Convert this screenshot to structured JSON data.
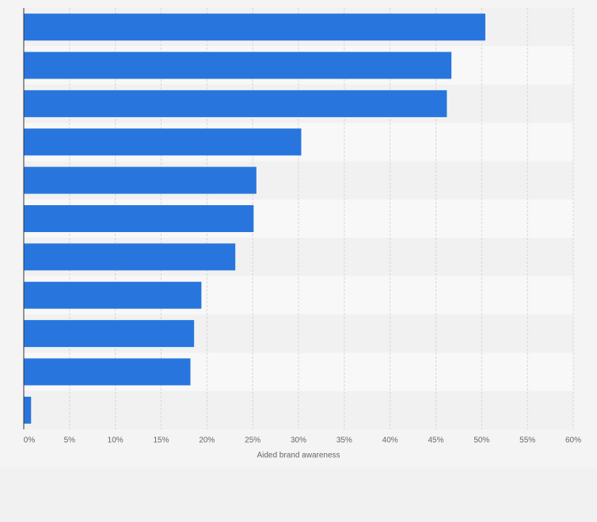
{
  "chart_data": {
    "type": "bar",
    "orientation": "horizontal",
    "x_label": "Aided brand awareness",
    "categories": [
      null,
      null,
      null,
      null,
      null,
      null,
      null,
      null,
      null,
      null,
      null
    ],
    "values": [
      50.4,
      46.7,
      46.2,
      30.3,
      25.4,
      25.1,
      23.1,
      19.4,
      18.6,
      18.2,
      0.8
    ],
    "color": "#2876dd",
    "xlim": [
      0,
      60
    ],
    "xticks": [
      {
        "value": 0,
        "label": "0%"
      },
      {
        "value": 5,
        "label": "5%"
      },
      {
        "value": 10,
        "label": "10%"
      },
      {
        "value": 15,
        "label": "15%"
      },
      {
        "value": 20,
        "label": "20%"
      },
      {
        "value": 25,
        "label": "25%"
      },
      {
        "value": 30,
        "label": "30%"
      },
      {
        "value": 35,
        "label": "35%"
      },
      {
        "value": 40,
        "label": "40%"
      },
      {
        "value": 45,
        "label": "45%"
      },
      {
        "value": 50,
        "label": "50%"
      },
      {
        "value": 55,
        "label": "55%"
      },
      {
        "value": 60,
        "label": "60%"
      }
    ],
    "grid": true
  }
}
